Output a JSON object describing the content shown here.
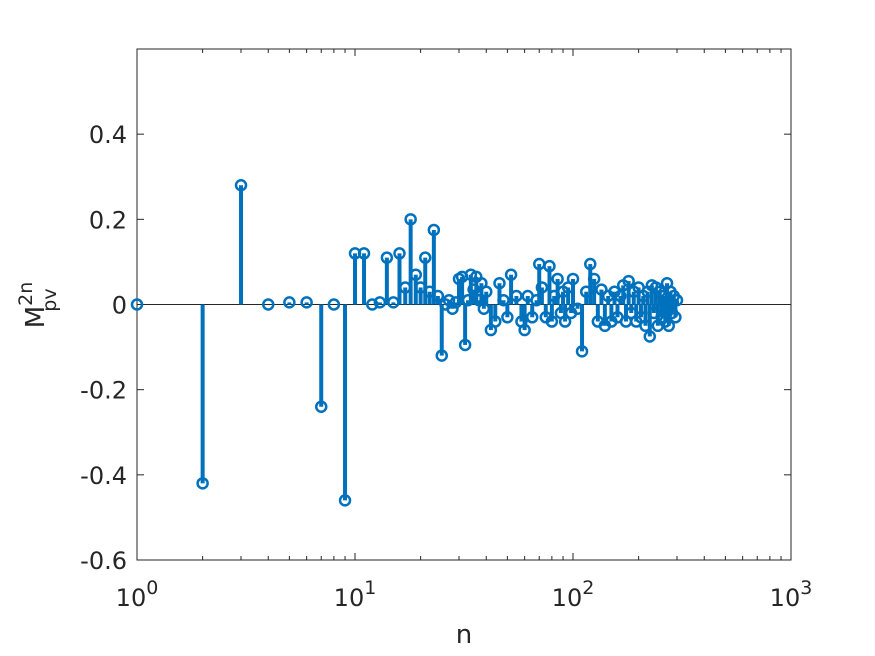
{
  "chart_data": {
    "type": "stem",
    "xlabel": "n",
    "ylabel": {
      "base": "M",
      "superscript": "2n",
      "subscript": "pv"
    },
    "x_scale": "log",
    "xlim": [
      1,
      1000
    ],
    "ylim": [
      -0.6,
      0.6
    ],
    "x_ticks": [
      {
        "value": 1,
        "base": "10",
        "exp": "0"
      },
      {
        "value": 10,
        "base": "10",
        "exp": "1"
      },
      {
        "value": 100,
        "base": "10",
        "exp": "2"
      },
      {
        "value": 1000,
        "base": "10",
        "exp": "3"
      }
    ],
    "y_ticks": [
      {
        "value": 0.4,
        "label": "0.4"
      },
      {
        "value": 0.2,
        "label": "0.2"
      },
      {
        "value": 0,
        "label": "0"
      },
      {
        "value": -0.2,
        "label": "-0.2"
      },
      {
        "value": -0.4,
        "label": "-0.4"
      },
      {
        "value": -0.6,
        "label": "-0.6"
      }
    ],
    "grid": false,
    "legend": "none",
    "color": "#0072BD",
    "x": [
      1,
      2,
      3,
      4,
      5,
      6,
      7,
      8,
      9,
      10,
      11,
      12,
      13,
      14,
      15,
      16,
      17,
      18,
      19,
      20,
      21,
      22,
      23,
      24,
      25,
      26,
      27,
      28,
      29,
      30,
      31,
      32,
      33,
      34,
      35,
      36,
      37,
      38,
      39,
      40,
      42,
      44,
      46,
      48,
      50,
      52,
      55,
      58,
      60,
      62,
      65,
      68,
      70,
      72,
      75,
      78,
      80,
      82,
      85,
      88,
      90,
      92,
      95,
      98,
      100,
      105,
      110,
      115,
      120,
      125,
      130,
      135,
      140,
      145,
      150,
      155,
      160,
      165,
      170,
      175,
      180,
      185,
      190,
      195,
      200,
      205,
      210,
      215,
      220,
      225,
      230,
      235,
      240,
      245,
      250,
      255,
      260,
      265,
      270,
      275,
      280,
      285,
      290,
      295,
      300
    ],
    "y": [
      0.0,
      -0.42,
      0.28,
      0.0,
      0.005,
      0.005,
      -0.24,
      0.0,
      -0.46,
      0.12,
      0.12,
      0.0,
      0.005,
      0.11,
      0.005,
      0.12,
      0.04,
      0.2,
      0.07,
      0.04,
      0.11,
      0.03,
      0.175,
      0.02,
      -0.12,
      0.0,
      0.01,
      -0.01,
      0.005,
      0.06,
      0.065,
      -0.095,
      0.01,
      0.07,
      0.035,
      0.065,
      0.01,
      0.05,
      -0.01,
      0.03,
      -0.06,
      -0.04,
      0.05,
      0.01,
      -0.03,
      0.07,
      0.02,
      -0.04,
      -0.06,
      0.02,
      -0.03,
      0.01,
      0.095,
      0.04,
      -0.03,
      0.09,
      -0.04,
      0.02,
      0.06,
      -0.02,
      0.03,
      -0.04,
      0.04,
      -0.02,
      0.06,
      -0.01,
      -0.11,
      0.03,
      0.095,
      0.06,
      -0.04,
      0.035,
      -0.05,
      0.02,
      -0.04,
      0.03,
      -0.03,
      0.02,
      0.045,
      -0.04,
      0.055,
      -0.02,
      0.03,
      -0.04,
      0.04,
      -0.03,
      0.02,
      -0.05,
      0.03,
      -0.075,
      0.045,
      -0.02,
      0.04,
      -0.05,
      0.03,
      -0.03,
      0.02,
      -0.04,
      0.05,
      -0.05,
      0.03,
      -0.02,
      0.02,
      -0.03,
      0.01
    ]
  }
}
